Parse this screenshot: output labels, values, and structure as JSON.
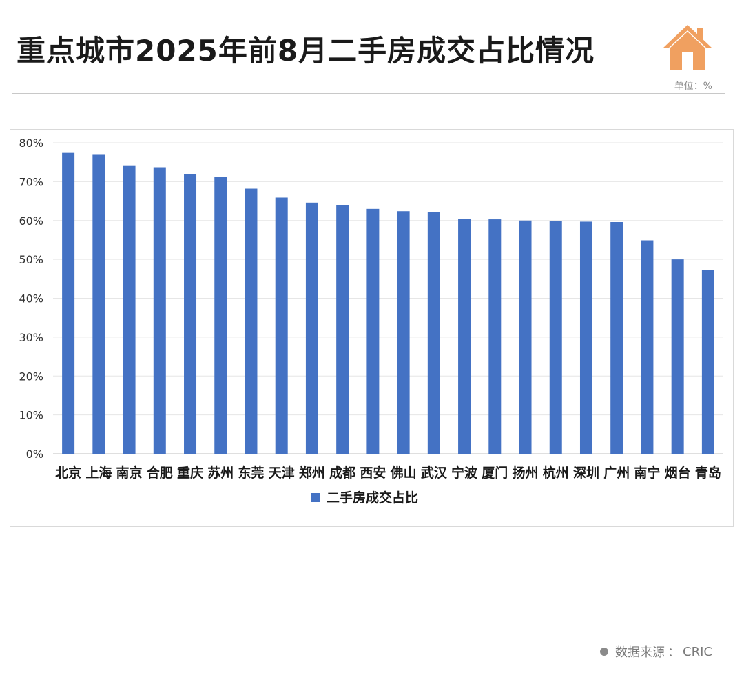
{
  "header": {
    "title": "重点城市2025年前8月二手房成交占比情况",
    "icon": "house-icon",
    "unit": "单位：%"
  },
  "footer": {
    "source_label": "数据来源",
    "source_sep": "：",
    "source_value": "CRIC"
  },
  "colors": {
    "bar": "#4472C4",
    "icon": "#F0A060",
    "grid": "#e6e6e6"
  },
  "chart_data": {
    "type": "bar",
    "title": "",
    "xlabel": "",
    "ylabel": "",
    "categories": [
      "北京",
      "上海",
      "南京",
      "合肥",
      "重庆",
      "苏州",
      "东莞",
      "天津",
      "郑州",
      "成都",
      "西安",
      "佛山",
      "武汉",
      "宁波",
      "厦门",
      "扬州",
      "杭州",
      "深圳",
      "广州",
      "南宁",
      "烟台",
      "青岛"
    ],
    "series": [
      {
        "name": "二手房成交占比",
        "values": [
          77.4,
          76.9,
          74.2,
          73.7,
          72.0,
          71.2,
          68.2,
          65.9,
          64.6,
          63.9,
          63.0,
          62.4,
          62.2,
          60.4,
          60.3,
          60.0,
          59.9,
          59.7,
          59.6,
          54.9,
          50.0,
          47.2
        ]
      }
    ],
    "yticks": [
      "0%",
      "10%",
      "20%",
      "30%",
      "40%",
      "50%",
      "60%",
      "70%",
      "80%"
    ],
    "ylim": [
      0,
      80
    ],
    "grid": true,
    "legend_position": "bottom"
  }
}
